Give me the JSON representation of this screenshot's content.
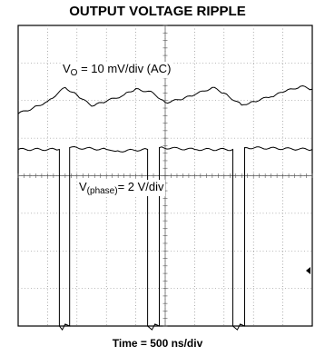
{
  "chart_data": {
    "type": "line",
    "title": "OUTPUT VOLTAGE RIPPLE",
    "xlabel": "Time = 500 ns/div",
    "ylabel": "",
    "grid": true,
    "divisions": {
      "x": 10,
      "y": 8
    },
    "series": [
      {
        "name_main": "V",
        "name_sub": "O",
        "name_rest": " = 10 mV/div (AC)",
        "scale": "10 mV/div (AC)",
        "x_div": [
          0.0,
          0.5,
          1.0,
          1.6,
          2.0,
          2.5,
          3.0,
          3.6,
          4.0,
          4.6,
          5.0,
          5.5,
          6.0,
          6.6,
          7.0,
          7.6,
          8.0,
          8.6,
          9.0,
          9.6,
          10.0
        ],
        "y_div": [
          -0.45,
          -0.3,
          -0.12,
          0.25,
          0.05,
          -0.25,
          -0.12,
          0.05,
          0.22,
          0.1,
          -0.15,
          -0.08,
          0.05,
          0.25,
          0.1,
          -0.22,
          -0.12,
          0.0,
          0.12,
          0.28,
          0.2
        ]
      },
      {
        "name_main": "V",
        "name_sub": "(phase)",
        "name_rest": "= 2 V/div",
        "scale": "2 V/div",
        "x_div": [
          0.0,
          1.4,
          1.4,
          1.5,
          1.6,
          1.75,
          1.75,
          3.0,
          3.3,
          4.4,
          4.4,
          4.55,
          4.65,
          4.8,
          4.8,
          6.0,
          7.3,
          7.3,
          7.45,
          7.55,
          7.7,
          7.7,
          10.0
        ],
        "y_div": [
          2.0,
          2.0,
          -2.7,
          -2.8,
          -2.65,
          -2.7,
          2.05,
          2.0,
          1.95,
          2.0,
          -2.7,
          -2.8,
          -2.65,
          -2.7,
          2.05,
          2.0,
          2.0,
          -2.7,
          -2.8,
          -2.65,
          -2.7,
          2.05,
          2.0
        ]
      }
    ]
  }
}
